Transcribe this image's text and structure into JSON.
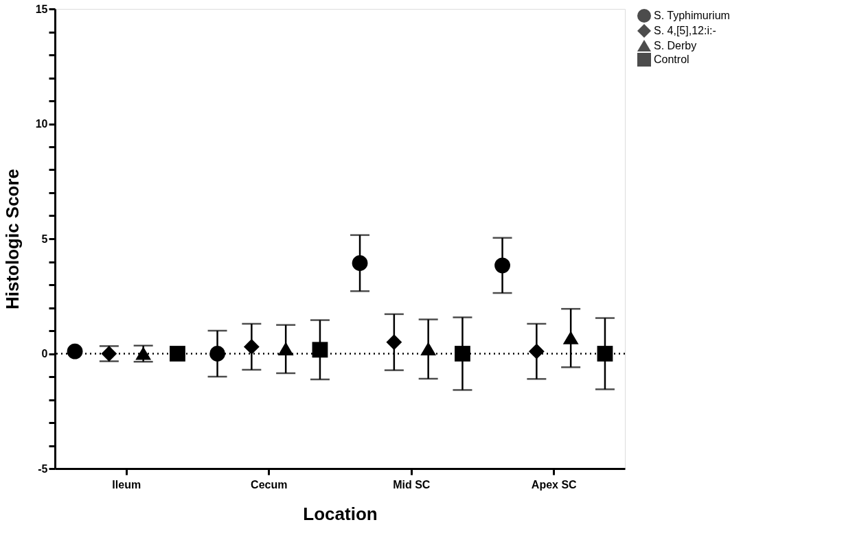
{
  "chart_data": {
    "type": "scatter",
    "xlabel": "Location",
    "ylabel": "Histologic Score",
    "categories": [
      "Ileum",
      "Cecum",
      "Mid SC",
      "Apex SC"
    ],
    "series": [
      {
        "name": "S. Typhimurium",
        "color": "#000000",
        "marker": "circle",
        "values": [
          0.1,
          0,
          3.94,
          3.84
        ],
        "errors": [
          null,
          1.0,
          1.22,
          1.2
        ]
      },
      {
        "name": "S. 4,[5],12:i:-",
        "color": "#000000",
        "marker": "diamond",
        "values": [
          0,
          0.3,
          0.5,
          0.1
        ],
        "errors": [
          0.33,
          1.0,
          1.22,
          1.2
        ]
      },
      {
        "name": "S. Derby",
        "color": "#000000",
        "marker": "triangle",
        "values": [
          0,
          0.2,
          0.2,
          0.68
        ],
        "errors": [
          0.35,
          1.05,
          1.29,
          1.27
        ]
      },
      {
        "name": "Control",
        "color": "#000000",
        "marker": "square",
        "values": [
          0,
          0.17,
          0,
          0
        ],
        "errors": [
          null,
          1.29,
          1.58,
          1.55
        ]
      }
    ],
    "ylim": [
      -5,
      15
    ],
    "yticks": [
      -5,
      {
        "value": -4,
        "label": null
      },
      {
        "value": -3,
        "label": null
      },
      {
        "value": -2,
        "label": null
      },
      {
        "value": -1,
        "label": null
      },
      0,
      {
        "value": 1,
        "label": null
      },
      {
        "value": 2,
        "label": null
      },
      {
        "value": 3,
        "label": null
      },
      {
        "value": 4,
        "label": null
      },
      5,
      {
        "value": 6,
        "label": null
      },
      {
        "value": 7,
        "label": null
      },
      {
        "value": 8,
        "label": null
      },
      {
        "value": 9,
        "label": null
      },
      10,
      {
        "value": 11,
        "label": null
      },
      {
        "value": 12,
        "label": null
      },
      {
        "value": 13,
        "label": null
      },
      {
        "value": 14,
        "label": null
      },
      15
    ],
    "ref_lines": [
      {
        "axis": "y",
        "value": 0,
        "line_style": "dotted"
      }
    ],
    "grid": false,
    "legend": "right"
  }
}
